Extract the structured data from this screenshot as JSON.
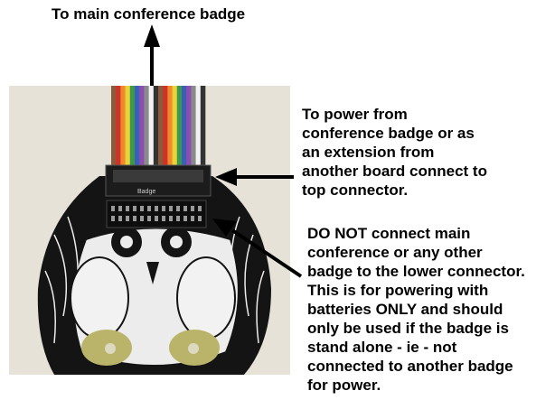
{
  "labels": {
    "top": "To main conference badge",
    "power": "To power from\nconference badge or as\nan extension from\nanother board connect to\ntop connector.",
    "warning": "DO NOT connect main\nconference or any other\nbadge to the lower connector.\nThis is for powering with\nbatteries ONLY and should\nonly be used if the badge is\nstand alone - ie - not\nconnected to another badge\nfor power."
  },
  "photo": {
    "board_silkscreen": "Badge",
    "ribbon_colors": [
      "#8a5a3b",
      "#d0322b",
      "#ef8a2a",
      "#e9d33a",
      "#3a9a4a",
      "#3b5fb8",
      "#8b4fb0",
      "#8a8a8a",
      "#f2f2f2",
      "#333333",
      "#8a5a3b",
      "#d0322b",
      "#ef8a2a",
      "#e9d33a",
      "#3a9a4a",
      "#3b5fb8",
      "#8b4fb0",
      "#8a8a8a",
      "#f2f2f2",
      "#333333"
    ]
  },
  "colors": {
    "background": "#ffffff",
    "photo_background": "#e6e2d8",
    "pcb": "#141414",
    "arrow": "#000000"
  }
}
